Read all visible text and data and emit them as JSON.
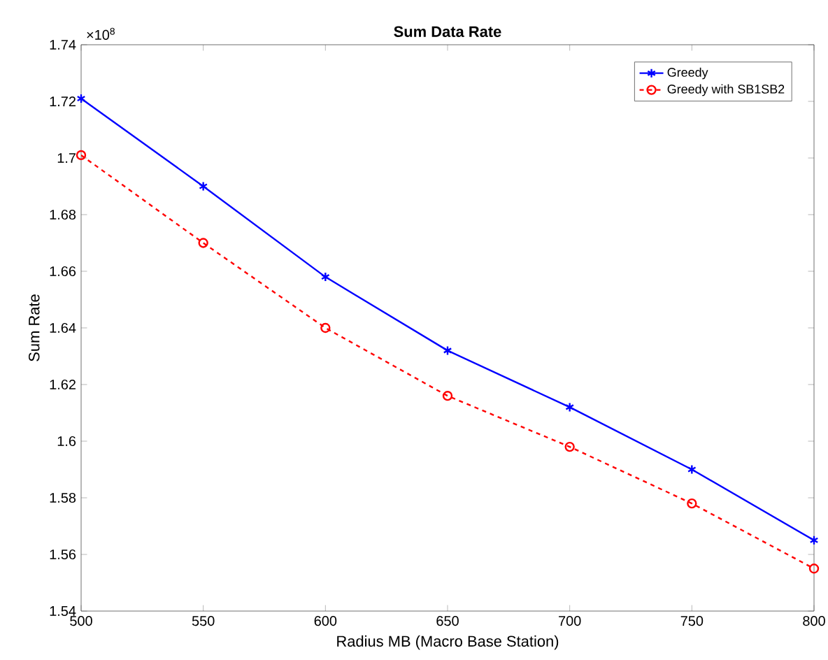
{
  "chart_data": {
    "type": "line",
    "title": "Sum Data Rate",
    "xlabel": "Radius MB (Macro Base Station)",
    "ylabel": "Sum Rate",
    "x": [
      500,
      550,
      600,
      650,
      700,
      750,
      800
    ],
    "series": [
      {
        "name": "Greedy",
        "color": "#0000ff",
        "marker": "cross",
        "line_style": "solid",
        "values": [
          1.721,
          1.69,
          1.658,
          1.632,
          1.612,
          1.59,
          1.565
        ]
      },
      {
        "name": "Greedy with SB1SB2",
        "color": "#ff0000",
        "marker": "circle",
        "line_style": "dashed",
        "values": [
          1.701,
          1.67,
          1.64,
          1.616,
          1.598,
          1.578,
          1.555
        ]
      }
    ],
    "xlim": [
      500,
      800
    ],
    "xticks": [
      500,
      550,
      600,
      650,
      700,
      750,
      800
    ],
    "ylim": [
      1.54,
      1.74
    ],
    "yticks": [
      1.54,
      1.56,
      1.58,
      1.6,
      1.62,
      1.64,
      1.66,
      1.68,
      1.7,
      1.72,
      1.74
    ],
    "annotations": [
      "×10$^{8}$"
    ],
    "legend": "top right",
    "grid": false
  }
}
